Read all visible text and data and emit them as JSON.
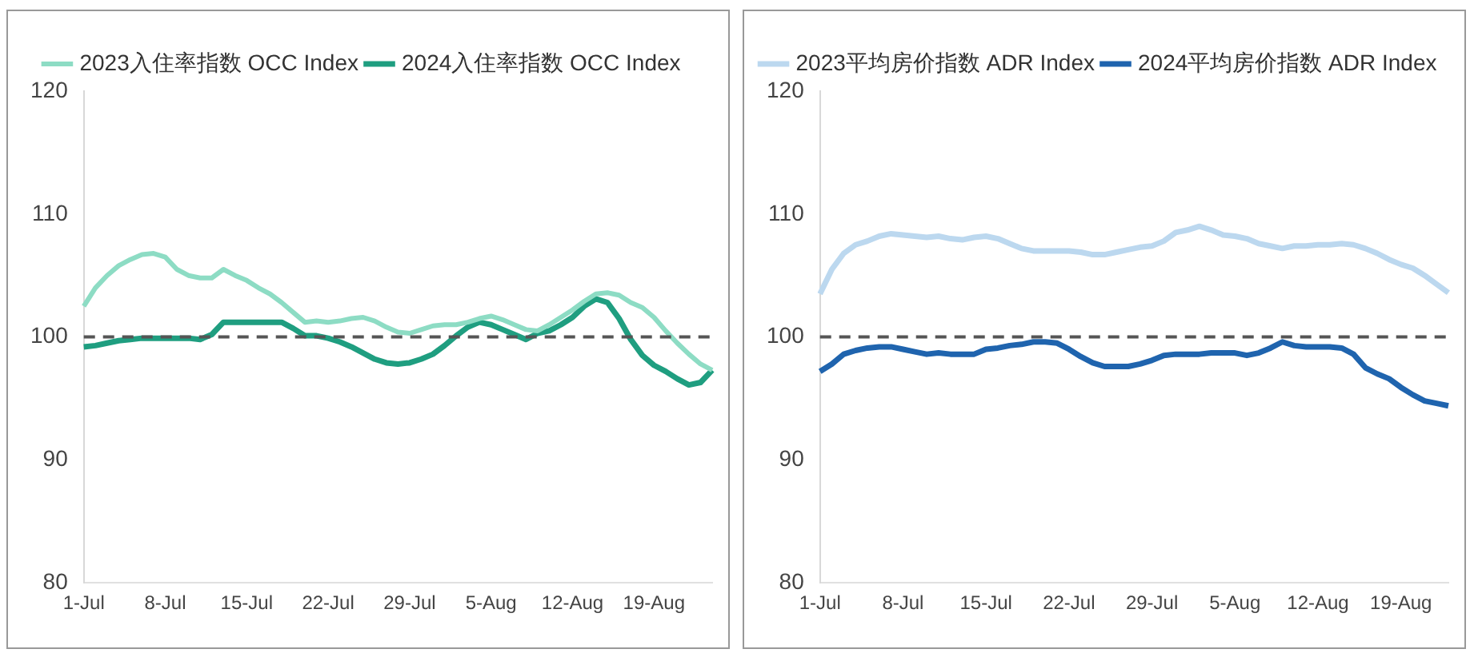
{
  "chart_data": [
    {
      "type": "line",
      "categories": [
        "1-Jul",
        null,
        null,
        null,
        null,
        null,
        null,
        "8-Jul",
        null,
        null,
        null,
        null,
        null,
        null,
        "15-Jul",
        null,
        null,
        null,
        null,
        null,
        null,
        "22-Jul",
        null,
        null,
        null,
        null,
        null,
        null,
        "29-Jul",
        null,
        null,
        null,
        null,
        null,
        null,
        "5-Aug",
        null,
        null,
        null,
        null,
        null,
        null,
        "12-Aug",
        null,
        null,
        null,
        null,
        null,
        null,
        "19-Aug",
        null,
        null,
        null,
        null,
        null
      ],
      "series": [
        {
          "name": "2023入住率指数 OCC Index",
          "color": "#8ddcc4",
          "values": [
            102.5,
            104,
            105,
            105.8,
            106.3,
            106.7,
            106.8,
            106.5,
            105.5,
            105,
            104.8,
            104.8,
            105.5,
            105,
            104.6,
            104,
            103.5,
            102.8,
            102,
            101.2,
            101.3,
            101.2,
            101.3,
            101.5,
            101.6,
            101.3,
            100.8,
            100.4,
            100.3,
            100.6,
            100.9,
            101,
            101,
            101.2,
            101.5,
            101.7,
            101.4,
            101,
            100.6,
            100.5,
            101,
            101.6,
            102.2,
            102.9,
            103.5,
            103.6,
            103.4,
            102.8,
            102.4,
            101.6,
            100.5,
            99.5,
            98.6,
            97.8,
            97.3
          ]
        },
        {
          "name": "2024入住率指数 OCC Index",
          "color": "#1f9e80",
          "values": [
            99.2,
            99.3,
            99.5,
            99.7,
            99.8,
            99.9,
            99.9,
            99.9,
            99.9,
            99.9,
            99.8,
            100.2,
            101.2,
            101.2,
            101.2,
            101.2,
            101.2,
            101.2,
            100.7,
            100.1,
            100.1,
            99.9,
            99.6,
            99.2,
            98.7,
            98.2,
            97.9,
            97.8,
            97.9,
            98.2,
            98.6,
            99.3,
            100.1,
            100.8,
            101.2,
            101,
            100.6,
            100.2,
            99.8,
            100.3,
            100.5,
            101,
            101.6,
            102.5,
            103.1,
            102.8,
            101.5,
            99.8,
            98.5,
            97.7,
            97.2,
            96.6,
            96.1,
            96.3,
            97.3
          ]
        }
      ],
      "ylim": [
        80,
        120
      ],
      "yticks": [
        80,
        90,
        100,
        110,
        120
      ],
      "grid": false,
      "legend": "top",
      "marker": "none",
      "ref_lines": [
        {
          "axis": "y",
          "value": 100,
          "color": "#555555",
          "line_style": "dashed"
        }
      ]
    },
    {
      "type": "line",
      "categories": [
        "1-Jul",
        null,
        null,
        null,
        null,
        null,
        null,
        "8-Jul",
        null,
        null,
        null,
        null,
        null,
        null,
        "15-Jul",
        null,
        null,
        null,
        null,
        null,
        null,
        "22-Jul",
        null,
        null,
        null,
        null,
        null,
        null,
        "29-Jul",
        null,
        null,
        null,
        null,
        null,
        null,
        "5-Aug",
        null,
        null,
        null,
        null,
        null,
        null,
        "12-Aug",
        null,
        null,
        null,
        null,
        null,
        null,
        "19-Aug",
        null,
        null,
        null,
        null
      ],
      "series": [
        {
          "name": "2023平均房价指数 ADR Index",
          "color": "#bcd8ef",
          "values": [
            103.5,
            105.5,
            106.8,
            107.5,
            107.8,
            108.2,
            108.4,
            108.3,
            108.2,
            108.1,
            108.2,
            108,
            107.9,
            108.1,
            108.2,
            108,
            107.6,
            107.2,
            107,
            107,
            107,
            107,
            106.9,
            106.7,
            106.7,
            106.9,
            107.1,
            107.3,
            107.4,
            107.8,
            108.5,
            108.7,
            109,
            108.7,
            108.3,
            108.2,
            108,
            107.6,
            107.4,
            107.2,
            107.4,
            107.4,
            107.5,
            107.5,
            107.6,
            107.5,
            107.2,
            106.8,
            106.3,
            105.9,
            105.6,
            105,
            104.3,
            103.6
          ]
        },
        {
          "name": "2024平均房价指数 ADR Index",
          "color": "#1f64ae",
          "values": [
            97.2,
            97.8,
            98.6,
            98.9,
            99.1,
            99.2,
            99.2,
            99,
            98.8,
            98.6,
            98.7,
            98.6,
            98.6,
            98.6,
            99,
            99.1,
            99.3,
            99.4,
            99.6,
            99.6,
            99.5,
            99,
            98.4,
            97.9,
            97.6,
            97.6,
            97.6,
            97.8,
            98.1,
            98.5,
            98.6,
            98.6,
            98.6,
            98.7,
            98.7,
            98.7,
            98.5,
            98.7,
            99.1,
            99.6,
            99.3,
            99.2,
            99.2,
            99.2,
            99.1,
            98.6,
            97.5,
            97,
            96.6,
            95.9,
            95.3,
            94.8,
            94.6,
            94.4
          ]
        }
      ],
      "ylim": [
        80,
        120
      ],
      "yticks": [
        80,
        90,
        100,
        110,
        120
      ],
      "grid": false,
      "legend": "top",
      "marker": "none",
      "ref_lines": [
        {
          "axis": "y",
          "value": 100,
          "color": "#555555",
          "line_style": "dashed"
        }
      ]
    }
  ]
}
